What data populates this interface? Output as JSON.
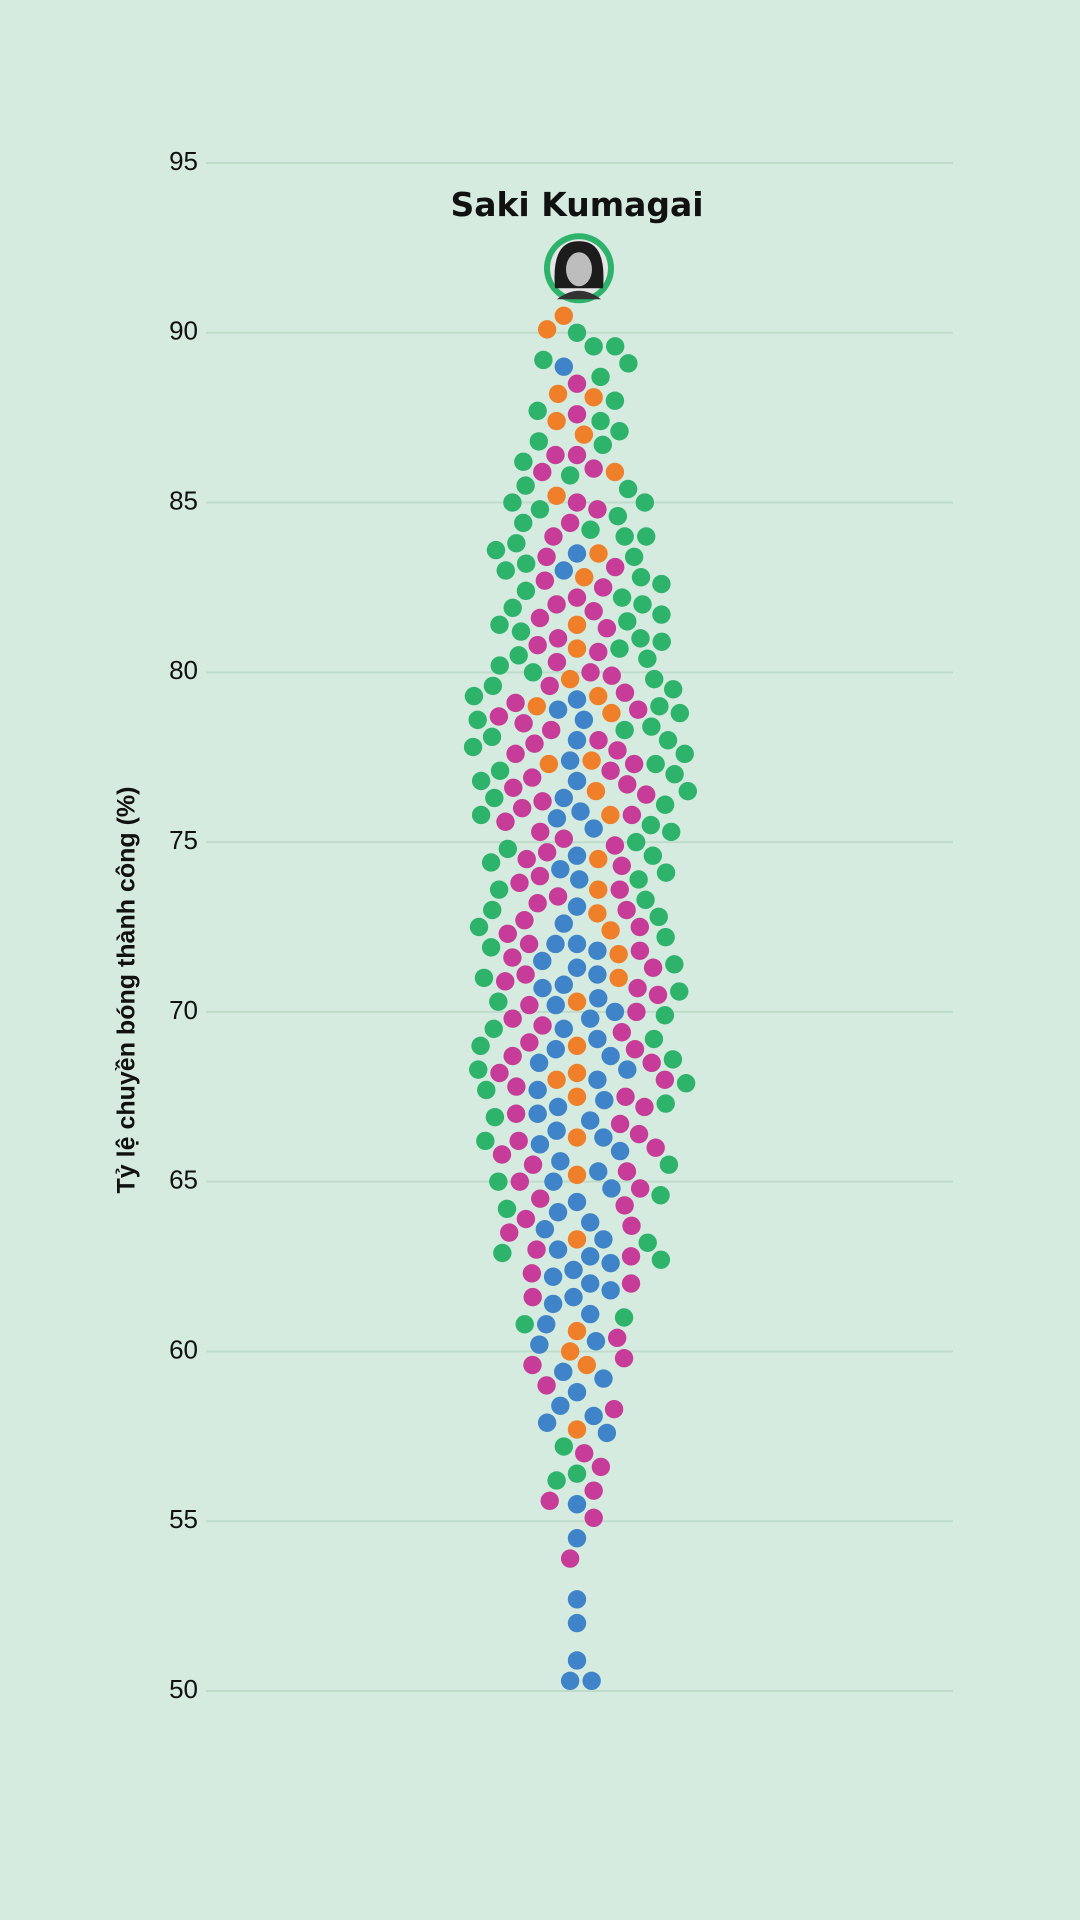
{
  "chart_data": {
    "type": "beeswarm",
    "y_label": "Tỷ lệ chuyền bóng thành công (%)",
    "ylim": [
      50,
      95
    ],
    "yticks": [
      50,
      55,
      60,
      65,
      70,
      75,
      80,
      85,
      90,
      95
    ],
    "grid": true,
    "highlight": {
      "label": "Saki Kumagai",
      "value": 91.9,
      "color": "#2db36a"
    },
    "series": [
      {
        "color": "#2db36a",
        "values": [
          90.0,
          89.6,
          89.6,
          89.2,
          89.1,
          88.7,
          88.0,
          87.7,
          87.4,
          87.1,
          86.8,
          86.7,
          86.2,
          85.8,
          85.5,
          85.4,
          85.0,
          85.0,
          84.8,
          84.6,
          84.4,
          84.2,
          84.0,
          84.0,
          83.8,
          83.6,
          83.4,
          83.2,
          83.0,
          82.8,
          82.6,
          82.4,
          82.2,
          82.0,
          81.9,
          81.7,
          81.5,
          81.4,
          81.2,
          81.0,
          80.9,
          80.7,
          80.5,
          80.4,
          80.2,
          80.0,
          79.8,
          79.6,
          79.5,
          79.3,
          79.0,
          78.8,
          78.6,
          78.4,
          78.3,
          78.1,
          78.0,
          77.8,
          77.6,
          77.3,
          77.1,
          77.0,
          76.8,
          76.5,
          76.3,
          76.1,
          75.8,
          75.5,
          75.3,
          75.0,
          74.8,
          74.6,
          74.4,
          74.1,
          73.9,
          73.6,
          73.3,
          73.0,
          72.8,
          72.5,
          72.2,
          71.9,
          71.4,
          71.0,
          70.6,
          70.3,
          69.9,
          69.5,
          69.2,
          69.0,
          68.6,
          68.3,
          67.9,
          67.7,
          67.3,
          66.9,
          66.2,
          65.5,
          65.0,
          64.6,
          64.2,
          63.2,
          62.9,
          62.7,
          61.0,
          60.8,
          57.2,
          56.4,
          56.2
        ]
      },
      {
        "color": "#f07f2a",
        "values": [
          90.5,
          90.1,
          88.2,
          88.1,
          87.4,
          87.0,
          85.9,
          85.2,
          83.5,
          82.8,
          81.4,
          80.7,
          79.8,
          79.3,
          79.0,
          78.8,
          77.4,
          77.3,
          76.5,
          75.8,
          74.5,
          73.6,
          72.9,
          72.4,
          71.7,
          71.0,
          70.3,
          69.0,
          68.2,
          68.0,
          67.5,
          66.3,
          65.2,
          63.3,
          60.6,
          60.0,
          59.6,
          57.7
        ]
      },
      {
        "color": "#c63c98",
        "values": [
          88.5,
          87.6,
          86.4,
          86.4,
          86.0,
          85.9,
          85.0,
          84.8,
          84.4,
          84.0,
          83.4,
          83.1,
          82.7,
          82.5,
          82.2,
          82.0,
          81.8,
          81.6,
          81.3,
          81.0,
          80.8,
          80.6,
          80.3,
          80.0,
          79.9,
          79.6,
          79.4,
          79.1,
          78.9,
          78.7,
          78.5,
          78.3,
          78.0,
          77.9,
          77.7,
          77.6,
          77.3,
          77.1,
          76.9,
          76.7,
          76.6,
          76.4,
          76.2,
          76.0,
          75.8,
          75.6,
          75.3,
          75.1,
          74.9,
          74.7,
          74.5,
          74.3,
          74.0,
          73.8,
          73.6,
          73.4,
          73.2,
          73.0,
          72.7,
          72.5,
          72.3,
          72.0,
          71.8,
          71.6,
          71.3,
          71.1,
          70.9,
          70.7,
          70.5,
          70.2,
          70.0,
          69.8,
          69.6,
          69.4,
          69.1,
          68.9,
          68.7,
          68.5,
          68.2,
          68.0,
          67.8,
          67.5,
          67.2,
          67.0,
          66.7,
          66.4,
          66.2,
          66.0,
          65.8,
          65.5,
          65.3,
          65.0,
          64.8,
          64.5,
          64.3,
          63.9,
          63.7,
          63.5,
          63.0,
          62.8,
          62.3,
          62.0,
          61.6,
          60.4,
          59.8,
          59.6,
          59.0,
          58.3,
          57.0,
          56.6,
          55.9,
          55.6,
          55.1,
          53.9
        ]
      },
      {
        "color": "#3f84c8",
        "values": [
          89.0,
          83.5,
          83.0,
          79.2,
          78.9,
          78.6,
          78.0,
          77.4,
          76.8,
          76.3,
          75.9,
          75.7,
          75.4,
          74.6,
          74.2,
          73.9,
          73.1,
          72.6,
          72.0,
          72.0,
          71.8,
          71.5,
          71.3,
          71.1,
          70.8,
          70.7,
          70.4,
          70.2,
          70.0,
          69.8,
          69.5,
          69.2,
          68.9,
          68.7,
          68.5,
          68.3,
          68.0,
          67.7,
          67.4,
          67.2,
          67.0,
          66.8,
          66.5,
          66.3,
          66.1,
          65.9,
          65.6,
          65.3,
          65.0,
          64.8,
          64.4,
          64.1,
          63.8,
          63.6,
          63.3,
          63.0,
          62.8,
          62.6,
          62.4,
          62.2,
          62.0,
          61.8,
          61.6,
          61.4,
          61.1,
          60.8,
          60.3,
          60.2,
          59.4,
          59.2,
          58.8,
          58.4,
          58.1,
          57.9,
          57.6,
          55.5,
          54.5,
          52.7,
          52.0,
          50.9,
          50.3,
          50.3
        ]
      }
    ]
  }
}
